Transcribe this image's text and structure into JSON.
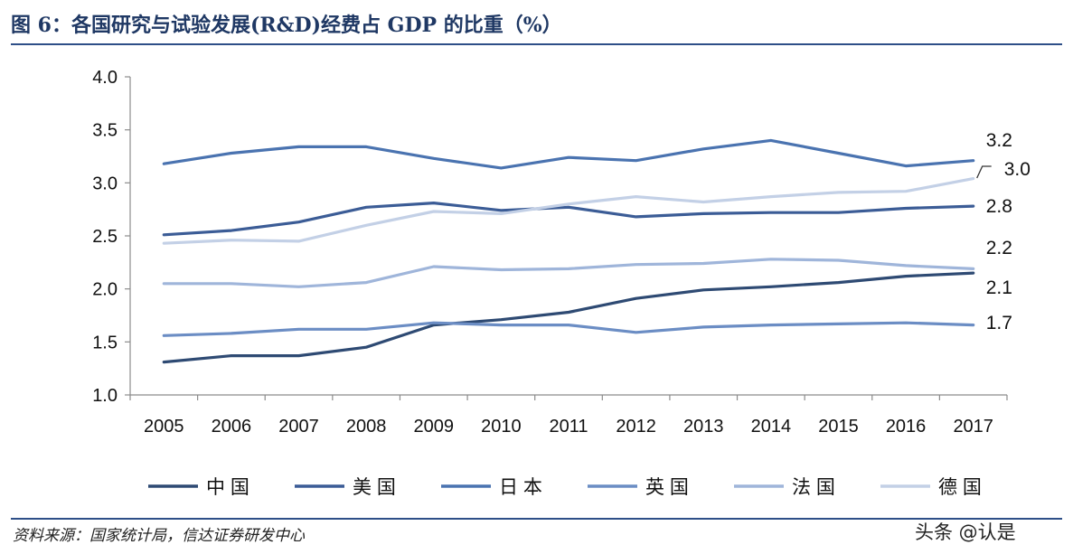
{
  "header": {
    "title": "图 6：各国研究与试验发展(R&D)经费占 GDP 的比重（%）"
  },
  "footer": {
    "source": "资料来源：国家统计局，信达证券研发中心",
    "watermark": "头条 @认是"
  },
  "chart_data": {
    "type": "line",
    "title": "各国研究与试验发展(R&D)经费占 GDP 的比重（%）",
    "xlabel": "",
    "ylabel": "",
    "ylim": [
      1.0,
      4.0
    ],
    "yticks": [
      "1.0",
      "1.5",
      "2.0",
      "2.5",
      "3.0",
      "3.5",
      "4.0"
    ],
    "grid": false,
    "legend_position": "bottom",
    "x": [
      "2005",
      "2006",
      "2007",
      "2008",
      "2009",
      "2010",
      "2011",
      "2012",
      "2013",
      "2014",
      "2015",
      "2016",
      "2017"
    ],
    "series": [
      {
        "name": "中 国",
        "color": "#2e4a73",
        "values": [
          1.31,
          1.37,
          1.37,
          1.45,
          1.66,
          1.71,
          1.78,
          1.91,
          1.99,
          2.02,
          2.06,
          2.12,
          2.15
        ],
        "end_label": "2.1"
      },
      {
        "name": "美 国",
        "color": "#3b5c96",
        "values": [
          2.51,
          2.55,
          2.63,
          2.77,
          2.81,
          2.74,
          2.77,
          2.68,
          2.71,
          2.72,
          2.72,
          2.76,
          2.78
        ],
        "end_label": "2.8"
      },
      {
        "name": "日 本",
        "color": "#4a73b0",
        "values": [
          3.18,
          3.28,
          3.34,
          3.34,
          3.23,
          3.14,
          3.24,
          3.21,
          3.32,
          3.4,
          3.28,
          3.16,
          3.21
        ],
        "end_label": "3.2"
      },
      {
        "name": "英 国",
        "color": "#6b8dc4",
        "values": [
          1.56,
          1.58,
          1.62,
          1.62,
          1.68,
          1.66,
          1.66,
          1.59,
          1.64,
          1.66,
          1.67,
          1.68,
          1.66
        ],
        "end_label": "1.7"
      },
      {
        "name": "法 国",
        "color": "#9fb5da",
        "values": [
          2.05,
          2.05,
          2.02,
          2.06,
          2.21,
          2.18,
          2.19,
          2.23,
          2.24,
          2.28,
          2.27,
          2.22,
          2.19
        ],
        "end_label": "2.2"
      },
      {
        "name": "德 国",
        "color": "#c3d0e6",
        "values": [
          2.43,
          2.46,
          2.45,
          2.6,
          2.73,
          2.71,
          2.8,
          2.87,
          2.82,
          2.87,
          2.91,
          2.92,
          3.04
        ],
        "end_label": "3.0"
      }
    ]
  }
}
